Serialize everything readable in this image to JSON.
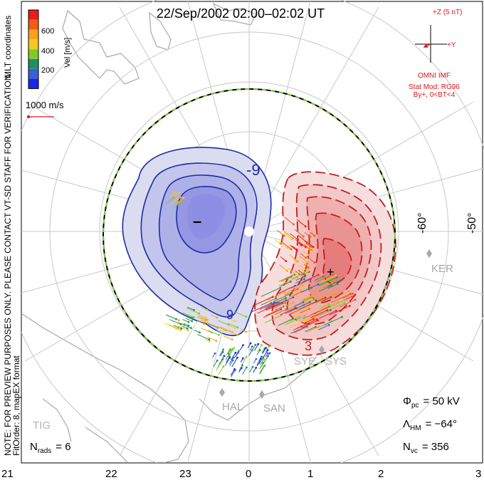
{
  "title": "22/Sep/2002 02:00–02:02 UT",
  "colorbar": {
    "label": "Vel [m/s]",
    "ticks": [
      "600",
      "400",
      "200"
    ],
    "colors": [
      "#ee1b1b",
      "#f05d18",
      "#f7a21b",
      "#f7c81c",
      "#7fcb2b",
      "#1f8f63",
      "#3b5fd6",
      "#1a27e8"
    ]
  },
  "coord_label": "MLT coordinates",
  "ref_vector_label": "1000 m/s",
  "note_text": "NOTE: FOR PREVIEW PURPOSES ONLY. PLEASE CONTACT VT-SD STAFF FOR VERIFICATION.",
  "fit_text": "FitOrder: 8, mapEX format",
  "imf": {
    "z_label": "+Z (5 nT)",
    "y_label": "+Y",
    "source": "OMNI IMF",
    "model": "Stat Mod: RG96",
    "condition": "By+, 0<BT<4"
  },
  "contour_labels": {
    "neg": "-9",
    "neg2": "9",
    "pos": "3"
  },
  "potential_markers": {
    "min": "–",
    "max": "+"
  },
  "lat_labels": [
    "-60°",
    "-50°"
  ],
  "stations": [
    "KER",
    "SYE",
    "SYS",
    "HAL",
    "SAN",
    "TIG"
  ],
  "stats": {
    "phi_label": "Φ",
    "phi_sub": "pc",
    "phi_value": "= 50 kV",
    "lambda_label": "Λ",
    "lambda_sub": "HM",
    "lambda_value": "= −64°",
    "nvc_label": "N",
    "nvc_sub": "vc",
    "nvc_value": "= 356",
    "nrads_label": "N",
    "nrads_sub": "rads",
    "nrads_value": "= 6"
  },
  "mlt_ticks": [
    "21",
    "22",
    "23",
    "0",
    "1",
    "2",
    "3"
  ],
  "colors": {
    "neg_fill": "#8c8fe3",
    "pos_fill": "#ef8f8f",
    "neg_line": "#1c2ca6",
    "pos_line": "#c41d1d",
    "boundary_green": "#7fcf3a"
  }
}
